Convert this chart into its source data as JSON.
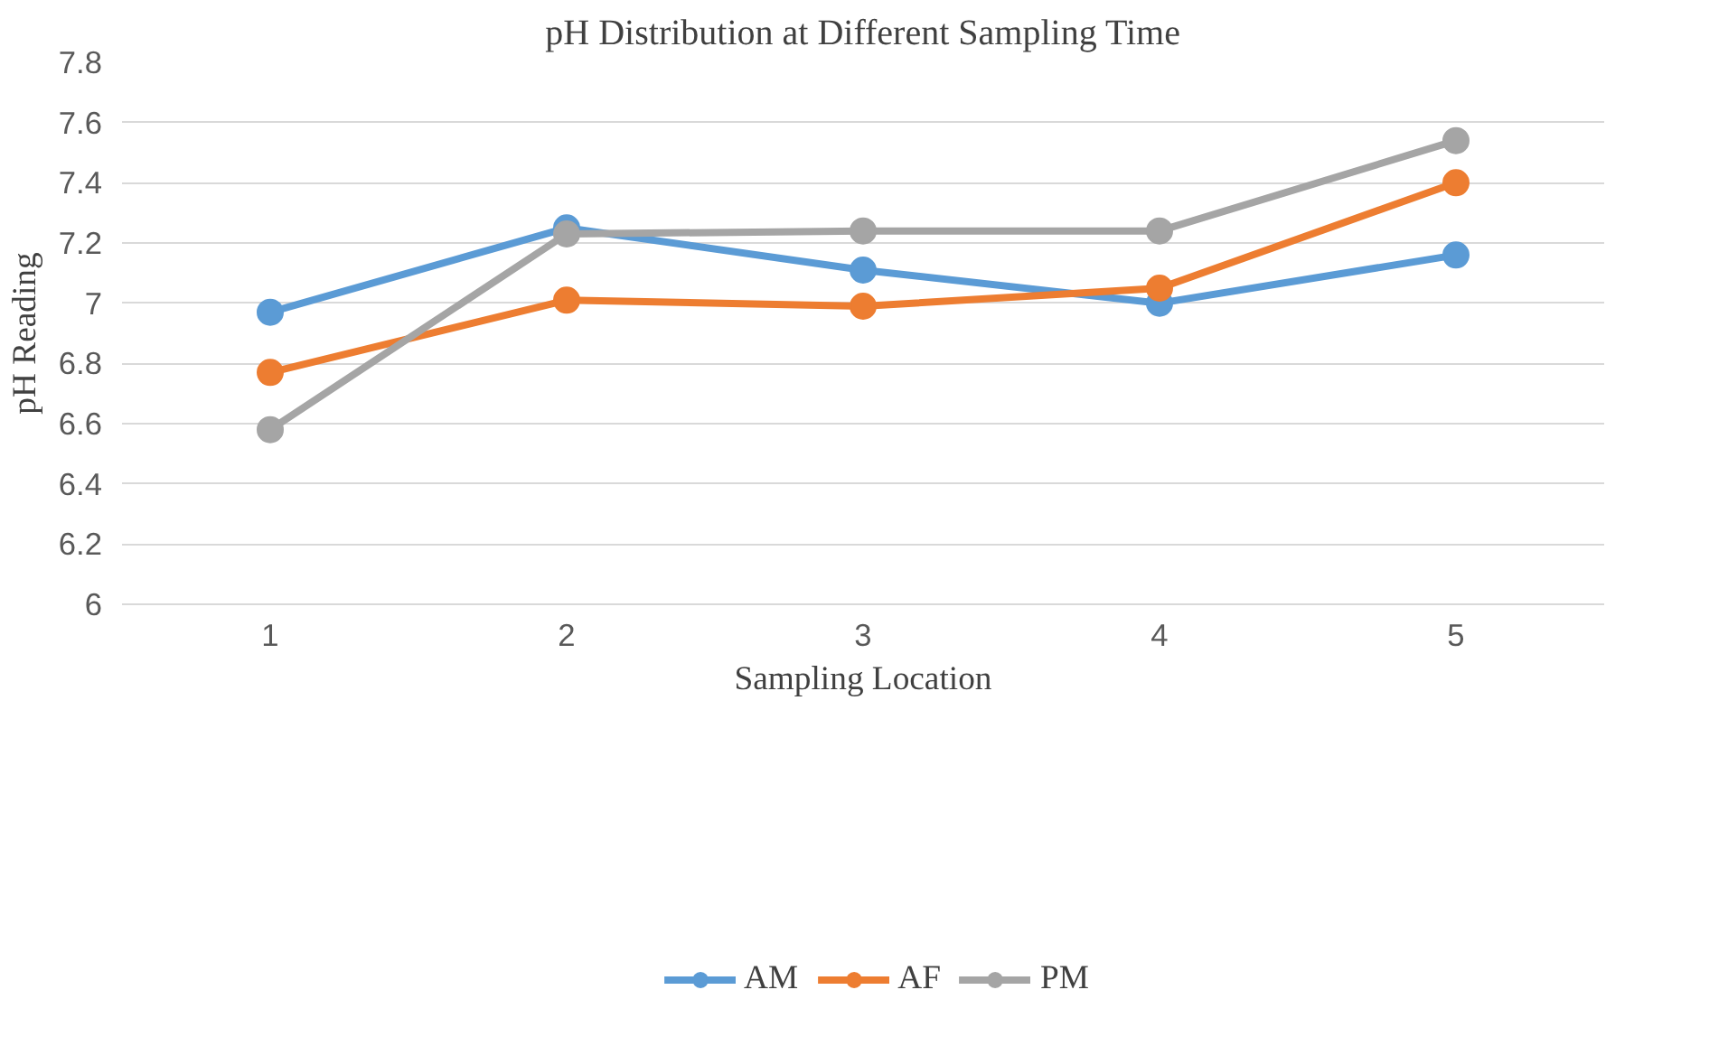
{
  "chart_data": {
    "type": "line",
    "title": "pH Distribution at Different Sampling Time",
    "xlabel": "Sampling Location",
    "ylabel": "pH Reading",
    "categories": [
      "1",
      "2",
      "3",
      "4",
      "5"
    ],
    "series": [
      {
        "name": "AM",
        "color": "#5b9bd5",
        "values": [
          6.97,
          7.25,
          7.11,
          7.0,
          7.16
        ]
      },
      {
        "name": "AF",
        "color": "#ed7d31",
        "values": [
          6.77,
          7.01,
          6.99,
          7.05,
          7.4
        ]
      },
      {
        "name": "PM",
        "color": "#a5a5a5",
        "values": [
          6.58,
          7.23,
          7.24,
          7.24,
          7.54
        ]
      }
    ],
    "ylim": [
      6,
      7.8
    ],
    "yticks": [
      6,
      6.2,
      6.4,
      6.6,
      6.8,
      7,
      7.2,
      7.4,
      7.6,
      7.8
    ],
    "grid": "y",
    "legend": "bottom",
    "marker": "circle",
    "line_style": "solid"
  }
}
